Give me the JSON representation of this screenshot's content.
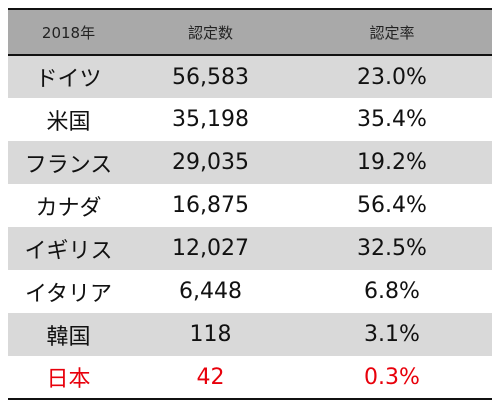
{
  "table": {
    "headers": [
      "2018年",
      "認定数",
      "認定率"
    ],
    "rows": [
      {
        "country": "ドイツ",
        "count": "56,583",
        "rate": "23.0%"
      },
      {
        "country": "米国",
        "count": "35,198",
        "rate": "35.4%"
      },
      {
        "country": "フランス",
        "count": "29,035",
        "rate": "19.2%"
      },
      {
        "country": "カナダ",
        "count": "16,875",
        "rate": "56.4%"
      },
      {
        "country": "イギリス",
        "count": "12,027",
        "rate": "32.5%"
      },
      {
        "country": "イタリア",
        "count": "6,448",
        "rate": "6.8%"
      },
      {
        "country": "韓国",
        "count": "118",
        "rate": "3.1%"
      },
      {
        "country": "日本",
        "count": "42",
        "rate": "0.3%"
      }
    ],
    "header_bg_color": "#a9a9a9",
    "shaded_row_color": "#d9d9d9",
    "highlight_text_color": "#e8000b",
    "highlight_row_country": "日本"
  }
}
